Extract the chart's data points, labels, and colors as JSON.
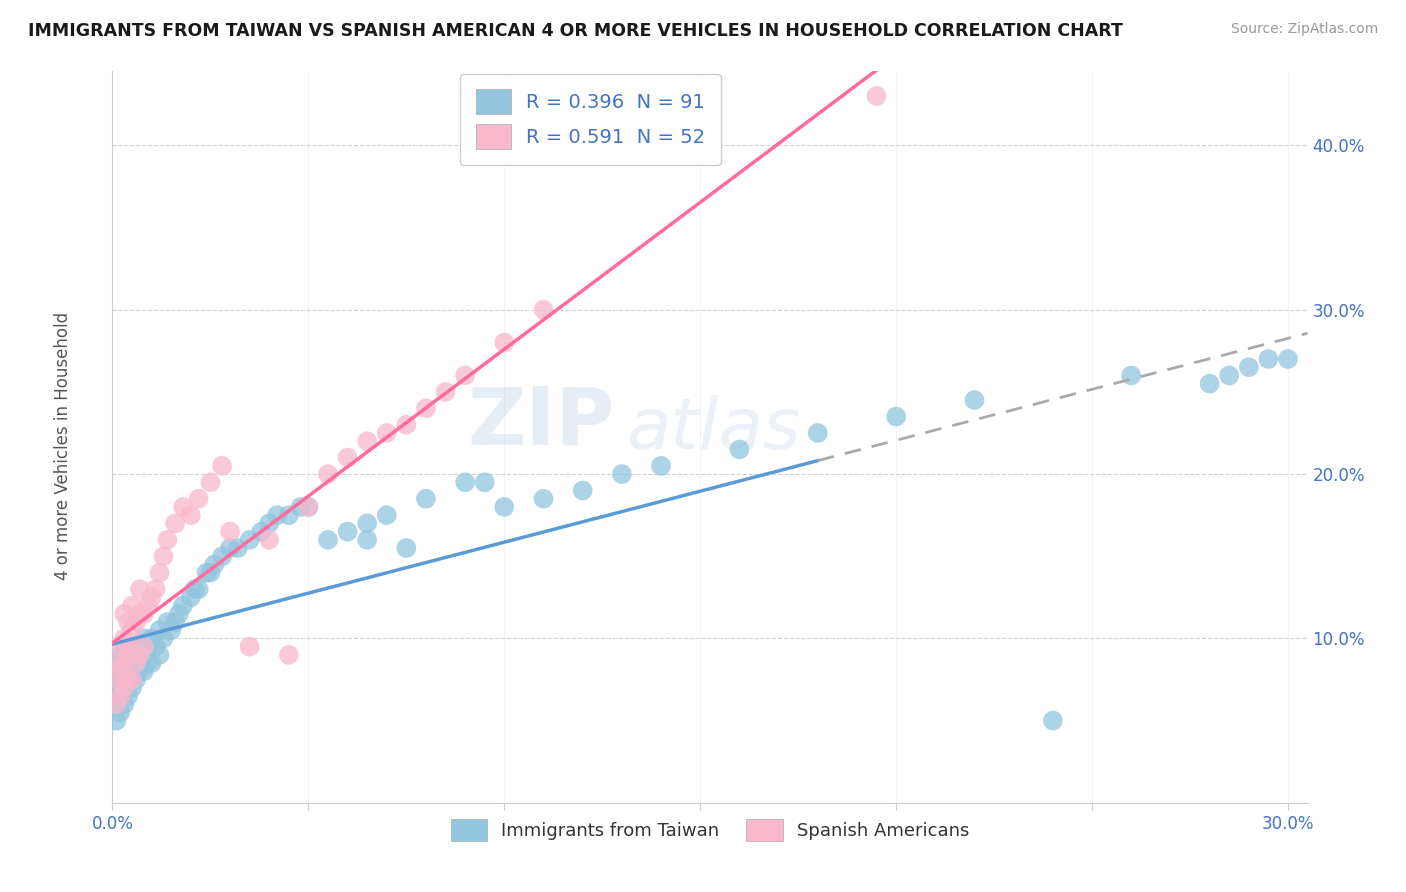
{
  "title": "IMMIGRANTS FROM TAIWAN VS SPANISH AMERICAN 4 OR MORE VEHICLES IN HOUSEHOLD CORRELATION CHART",
  "source": "Source: ZipAtlas.com",
  "ylabel": "4 or more Vehicles in Household",
  "color_taiwan": "#92C5DE",
  "color_spanish": "#F9B8CC",
  "line_taiwan_color": "#5B9BD5",
  "line_spanish_color": "#FF6B9D",
  "line_taiwan_dash_color": "#AAAAAA",
  "xlim": [
    0.0,
    0.305
  ],
  "ylim": [
    0.0,
    0.445
  ],
  "legend1_r": "0.396",
  "legend1_n": "91",
  "legend2_r": "0.591",
  "legend2_n": "52",
  "legend_series1": "Immigrants from Taiwan",
  "legend_series2": "Spanish Americans",
  "watermark_text": "ZIP",
  "watermark_text2": "atlas",
  "taiwan_x": [
    0.001,
    0.001,
    0.001,
    0.001,
    0.002,
    0.002,
    0.002,
    0.002,
    0.002,
    0.002,
    0.002,
    0.003,
    0.003,
    0.003,
    0.003,
    0.003,
    0.003,
    0.003,
    0.004,
    0.004,
    0.004,
    0.004,
    0.004,
    0.005,
    0.005,
    0.005,
    0.005,
    0.006,
    0.006,
    0.006,
    0.006,
    0.007,
    0.007,
    0.007,
    0.008,
    0.008,
    0.008,
    0.009,
    0.009,
    0.01,
    0.01,
    0.011,
    0.012,
    0.012,
    0.013,
    0.014,
    0.015,
    0.016,
    0.017,
    0.018,
    0.02,
    0.021,
    0.022,
    0.024,
    0.025,
    0.026,
    0.028,
    0.03,
    0.032,
    0.035,
    0.038,
    0.04,
    0.042,
    0.045,
    0.048,
    0.05,
    0.055,
    0.06,
    0.065,
    0.07,
    0.08,
    0.09,
    0.095,
    0.1,
    0.11,
    0.12,
    0.13,
    0.14,
    0.16,
    0.18,
    0.2,
    0.22,
    0.24,
    0.26,
    0.28,
    0.285,
    0.29,
    0.295,
    0.3,
    0.065,
    0.075
  ],
  "taiwan_y": [
    0.05,
    0.06,
    0.07,
    0.075,
    0.055,
    0.065,
    0.07,
    0.075,
    0.08,
    0.085,
    0.09,
    0.06,
    0.07,
    0.075,
    0.08,
    0.085,
    0.09,
    0.095,
    0.065,
    0.075,
    0.08,
    0.085,
    0.09,
    0.07,
    0.075,
    0.08,
    0.09,
    0.075,
    0.08,
    0.085,
    0.095,
    0.08,
    0.085,
    0.095,
    0.08,
    0.09,
    0.1,
    0.085,
    0.095,
    0.085,
    0.1,
    0.095,
    0.09,
    0.105,
    0.1,
    0.11,
    0.105,
    0.11,
    0.115,
    0.12,
    0.125,
    0.13,
    0.13,
    0.14,
    0.14,
    0.145,
    0.15,
    0.155,
    0.155,
    0.16,
    0.165,
    0.17,
    0.175,
    0.175,
    0.18,
    0.18,
    0.16,
    0.165,
    0.17,
    0.175,
    0.185,
    0.195,
    0.195,
    0.18,
    0.185,
    0.19,
    0.2,
    0.205,
    0.215,
    0.225,
    0.235,
    0.245,
    0.05,
    0.26,
    0.255,
    0.26,
    0.265,
    0.27,
    0.27,
    0.16,
    0.155
  ],
  "spanish_x": [
    0.001,
    0.001,
    0.001,
    0.002,
    0.002,
    0.002,
    0.003,
    0.003,
    0.003,
    0.003,
    0.004,
    0.004,
    0.004,
    0.005,
    0.005,
    0.005,
    0.005,
    0.006,
    0.006,
    0.007,
    0.007,
    0.007,
    0.008,
    0.008,
    0.009,
    0.01,
    0.011,
    0.012,
    0.013,
    0.014,
    0.016,
    0.018,
    0.02,
    0.022,
    0.025,
    0.028,
    0.03,
    0.035,
    0.04,
    0.045,
    0.05,
    0.055,
    0.06,
    0.065,
    0.07,
    0.075,
    0.08,
    0.085,
    0.09,
    0.1,
    0.11,
    0.195
  ],
  "spanish_y": [
    0.06,
    0.075,
    0.085,
    0.065,
    0.08,
    0.095,
    0.07,
    0.085,
    0.1,
    0.115,
    0.075,
    0.095,
    0.11,
    0.075,
    0.09,
    0.105,
    0.12,
    0.085,
    0.11,
    0.09,
    0.115,
    0.13,
    0.095,
    0.115,
    0.12,
    0.125,
    0.13,
    0.14,
    0.15,
    0.16,
    0.17,
    0.18,
    0.175,
    0.185,
    0.195,
    0.205,
    0.165,
    0.095,
    0.16,
    0.09,
    0.18,
    0.2,
    0.21,
    0.22,
    0.225,
    0.23,
    0.24,
    0.25,
    0.26,
    0.28,
    0.3,
    0.43
  ]
}
